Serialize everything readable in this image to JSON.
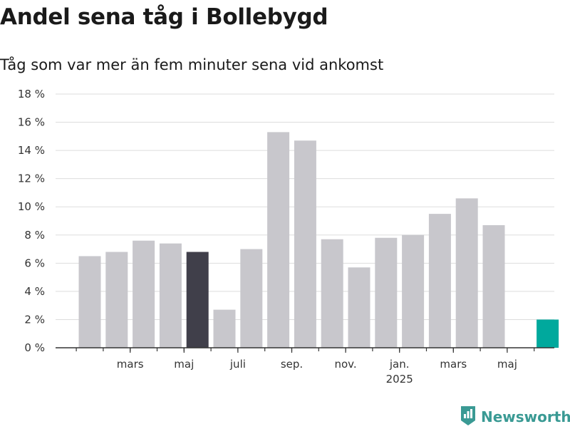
{
  "title": "Andel sena tåg i Bollebygd",
  "subtitle": "Tåg som var mer än fem minuter sena vid ankomst",
  "brand": {
    "name": "Newsworthy",
    "icon": "bar-chart-logo-icon",
    "color": "#3a9a94"
  },
  "colors": {
    "default": "#c8c7cc",
    "highlight_dark": "#403f4a",
    "highlight_latest": "#00a99d",
    "grid": "#dddddd",
    "axis": "#333333"
  },
  "chart_data": {
    "type": "bar",
    "ylim": [
      0,
      18
    ],
    "y_ticks": [
      0,
      2,
      4,
      6,
      8,
      10,
      12,
      14,
      16,
      18
    ],
    "y_tick_labels": [
      "0 %",
      "2 %",
      "4 %",
      "6 %",
      "8 %",
      "10 %",
      "12 %",
      "14 %",
      "16 %",
      "18 %"
    ],
    "grid": true,
    "categories": [
      "2024-02",
      "2024-03",
      "2024-04",
      "2024-05",
      "2024-06",
      "2024-07",
      "2024-08",
      "2024-09",
      "2024-10",
      "2024-11",
      "2024-12",
      "2025-01",
      "2025-02",
      "2025-03",
      "2025-04",
      "2025-05",
      "2025-06",
      "2025-07"
    ],
    "values": [
      6.5,
      6.8,
      7.6,
      7.4,
      6.8,
      2.7,
      7.0,
      15.3,
      14.7,
      7.7,
      5.7,
      7.8,
      8.0,
      9.5,
      10.6,
      8.7,
      null,
      2.0
    ],
    "bar_colors": [
      "default",
      "default",
      "default",
      "default",
      "highlight_dark",
      "default",
      "default",
      "default",
      "default",
      "default",
      "default",
      "default",
      "default",
      "default",
      "default",
      "default",
      "default",
      "highlight_latest"
    ],
    "x_tick_labels": [
      {
        "index": 1.5,
        "label": "mars",
        "sub": ""
      },
      {
        "index": 3.5,
        "label": "maj",
        "sub": ""
      },
      {
        "index": 5.5,
        "label": "juli",
        "sub": ""
      },
      {
        "index": 7.5,
        "label": "sep.",
        "sub": ""
      },
      {
        "index": 9.5,
        "label": "nov.",
        "sub": ""
      },
      {
        "index": 11.5,
        "label": "jan.",
        "sub": "2025"
      },
      {
        "index": 13.5,
        "label": "mars",
        "sub": ""
      },
      {
        "index": 15.5,
        "label": "maj",
        "sub": ""
      }
    ]
  }
}
